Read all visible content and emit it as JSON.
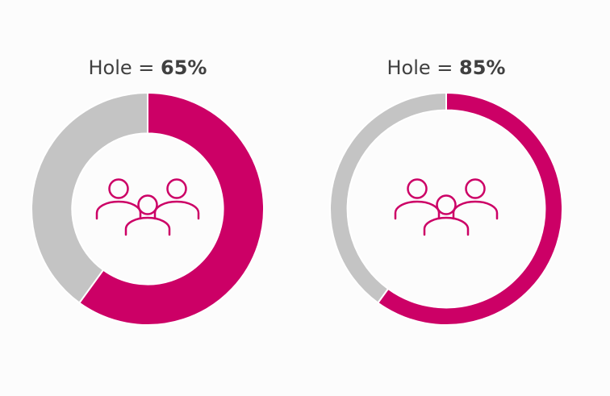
{
  "chart_data": [
    {
      "type": "pie",
      "title_prefix": "Hole = ",
      "title_value": "65%",
      "hole": 0.65,
      "slices": [
        {
          "value": 60,
          "color": "#cc0066"
        },
        {
          "value": 40,
          "color": "#c4c4c4"
        }
      ],
      "center_icon": "people-group-icon"
    },
    {
      "type": "pie",
      "title_prefix": "Hole = ",
      "title_value": "85%",
      "hole": 0.85,
      "slices": [
        {
          "value": 60,
          "color": "#cc0066"
        },
        {
          "value": 40,
          "color": "#c4c4c4"
        }
      ],
      "center_icon": "people-group-icon"
    }
  ],
  "colors": {
    "accent": "#cc0066",
    "remainder": "#c4c4c4",
    "background": "#fcfcfc",
    "text": "#404040"
  }
}
